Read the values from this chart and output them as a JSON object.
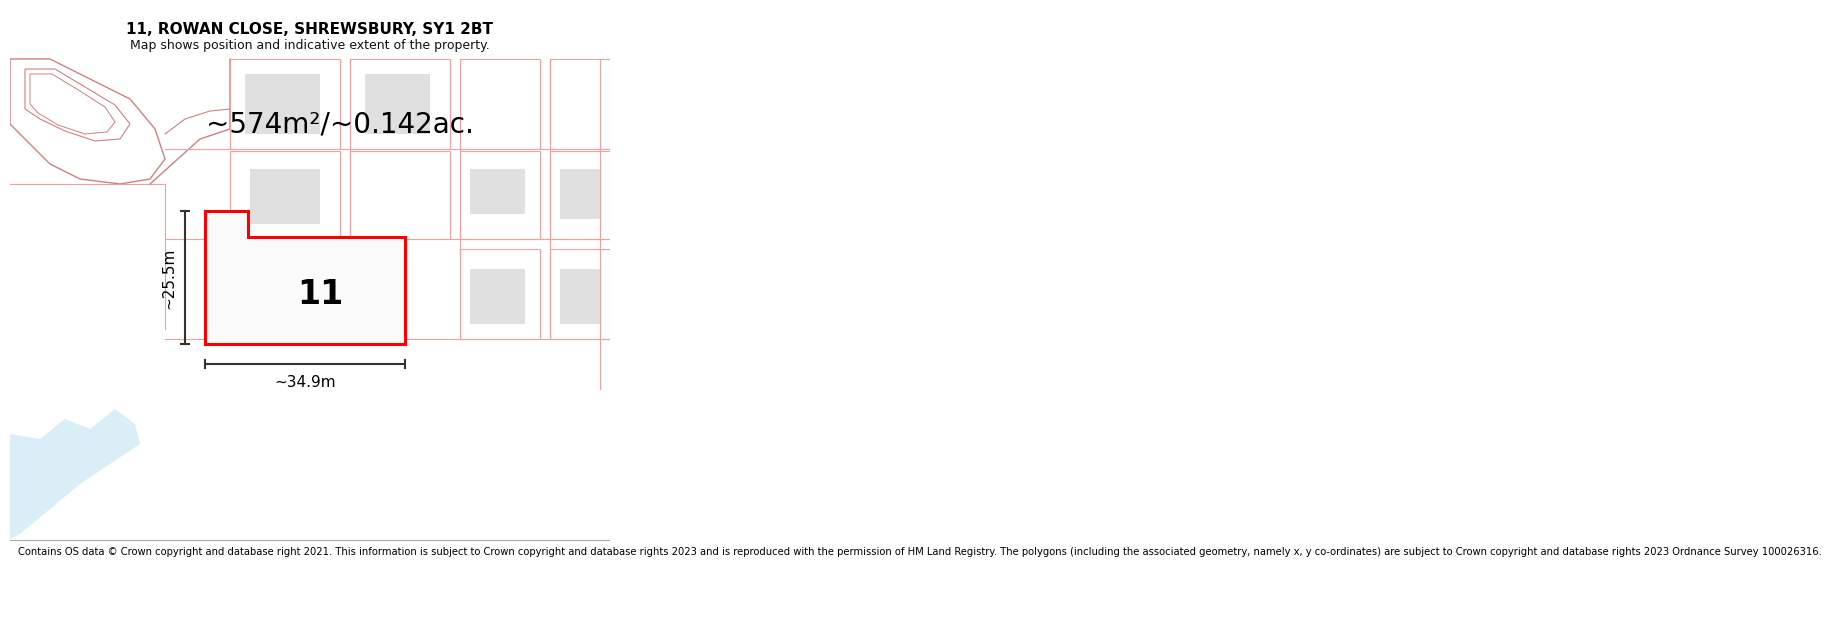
{
  "title": "11, ROWAN CLOSE, SHREWSBURY, SY1 2BT",
  "subtitle": "Map shows position and indicative extent of the property.",
  "area_text": "~574m²/~0.142ac.",
  "width_label": "~34.9m",
  "height_label": "~25.5m",
  "number_label": "11",
  "copyright_text": "Contains OS data © Crown copyright and database right 2021. This information is subject to Crown copyright and database rights 2023 and is reproduced with the permission of HM Land Registry. The polygons (including the associated geometry, namely x, y co-ordinates) are subject to Crown copyright and database rights 2023 Ordnance Survey 100026316.",
  "bg_color": "#ffffff",
  "map_bg": "#ffffff",
  "property_line_color": "#ff0000",
  "faint_line_color": "#f0a0a0",
  "faint_line_color2": "#d08080",
  "building_fill": "#e0e0e0",
  "water_color": "#daeef8",
  "title_fontsize": 11,
  "subtitle_fontsize": 9,
  "area_fontsize": 20,
  "label_fontsize": 11,
  "number_fontsize": 24,
  "copyright_fontsize": 7.2,
  "copyright_bg": "#f2f2f2"
}
